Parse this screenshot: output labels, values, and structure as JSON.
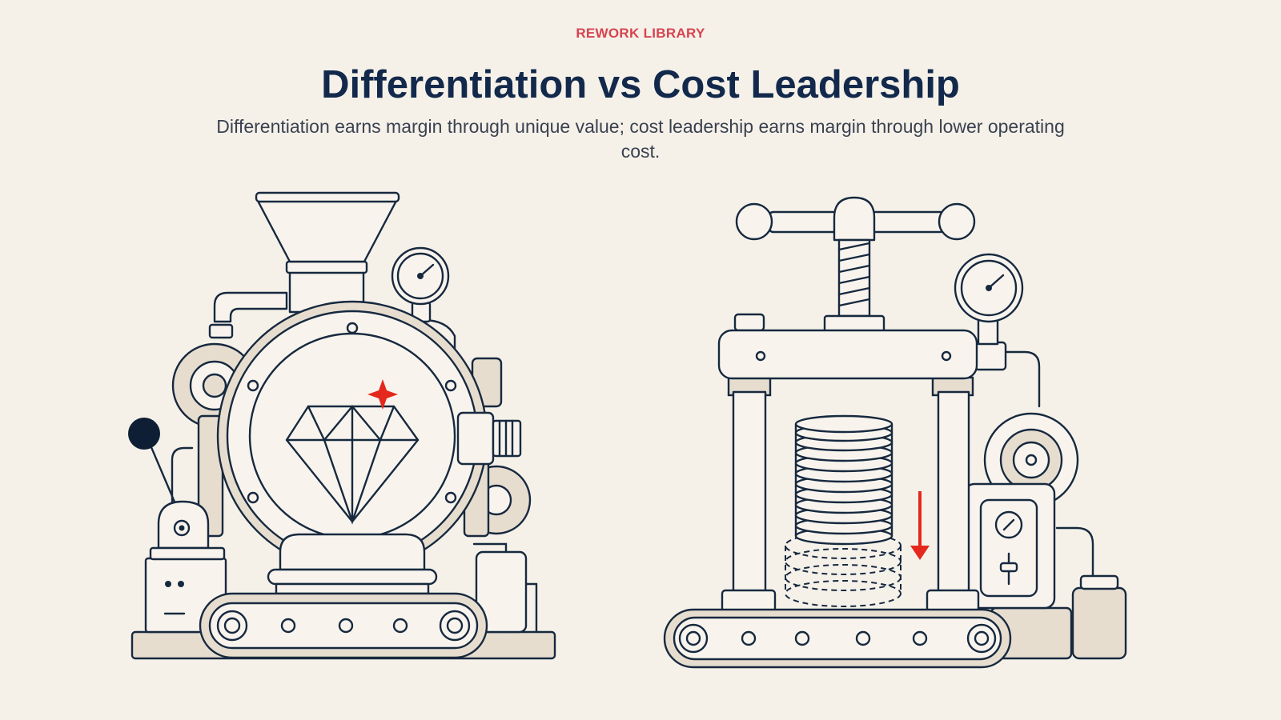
{
  "header": {
    "eyebrow": "REWORK LIBRARY",
    "title": "Differentiation vs Cost Leadership",
    "subtitle": "Differentiation earns margin through unique value; cost leadership earns margin through lower operating cost."
  }
}
